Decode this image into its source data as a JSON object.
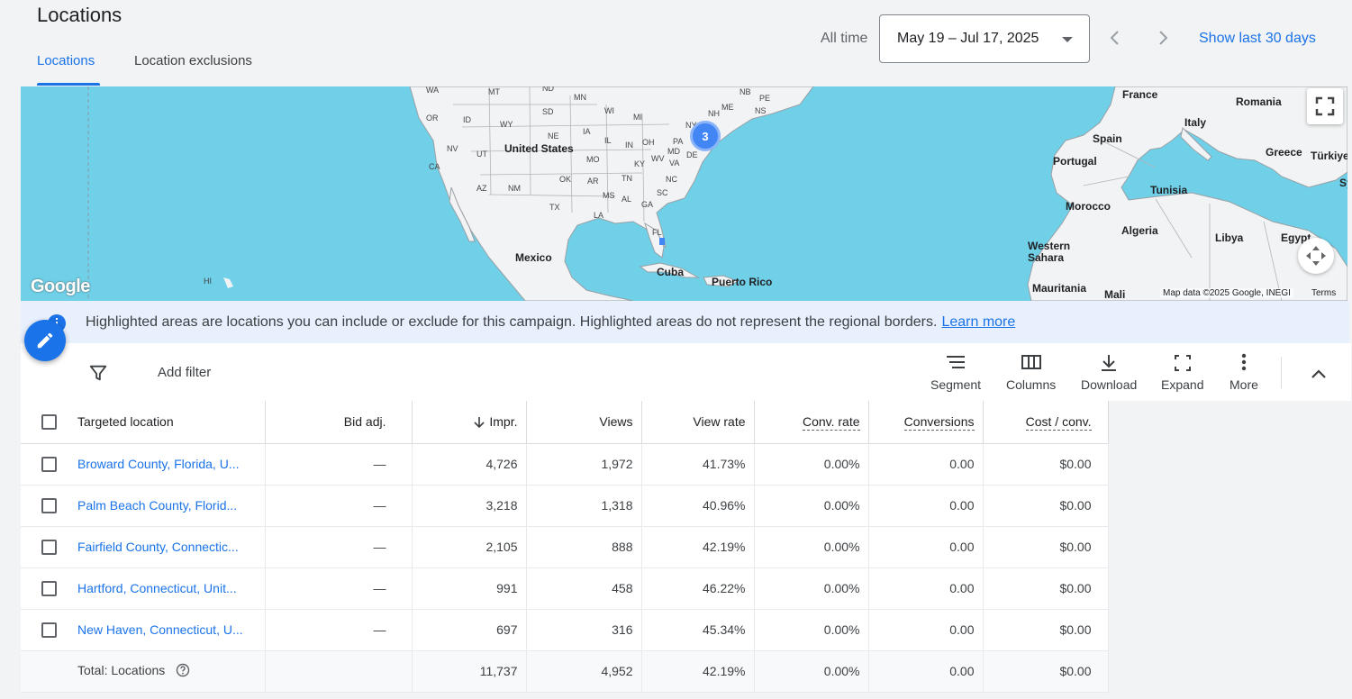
{
  "header": {
    "title": "Locations",
    "tabs": [
      {
        "label": "Locations",
        "active": true
      },
      {
        "label": "Location exclusions",
        "active": false
      }
    ],
    "date_range_label": "All time",
    "date_range_value": "May 19 – Jul 17, 2025",
    "show_last": "Show last 30 days"
  },
  "map": {
    "cluster_count": "3",
    "attribution": "Map data ©2025 Google, INEGI",
    "terms": "Terms",
    "logo": "Google",
    "country_labels": [
      "United States",
      "Mexico",
      "Cuba",
      "Puerto Rico",
      "France",
      "Romania",
      "Italy",
      "Spain",
      "Portugal",
      "Greece",
      "Türkiye",
      "Sy",
      "Tunisia",
      "Morocco",
      "Algeria",
      "Libya",
      "Egypt",
      "Western Sahara",
      "Mauritania",
      "Mali"
    ],
    "state_labels": [
      "WA",
      "MT",
      "ND",
      "MN",
      "OR",
      "ID",
      "SD",
      "WY",
      "WI",
      "MI",
      "NE",
      "IA",
      "NV",
      "UT",
      "IL",
      "IN",
      "OH",
      "PA",
      "NY",
      "CA",
      "MO",
      "KY",
      "WV",
      "VA",
      "DE",
      "MD",
      "AZ",
      "NM",
      "OK",
      "AR",
      "TN",
      "NC",
      "SC",
      "MS",
      "AL",
      "GA",
      "TX",
      "LA",
      "FL",
      "NH",
      "ME",
      "NB",
      "PE",
      "NS",
      "HI"
    ]
  },
  "info_bar": {
    "text": "Highlighted areas are locations you can include or exclude for this campaign. Highlighted areas do not represent the regional borders.",
    "learn_more": "Learn more"
  },
  "toolbar": {
    "add_filter": "Add filter",
    "segment": "Segment",
    "columns": "Columns",
    "download": "Download",
    "expand": "Expand",
    "more": "More"
  },
  "table": {
    "headers": {
      "location": "Targeted location",
      "bid_adj": "Bid adj.",
      "impr": "Impr.",
      "views": "Views",
      "view_rate": "View rate",
      "conv_rate": "Conv. rate",
      "conversions": "Conversions",
      "cost_conv": "Cost / conv."
    },
    "rows": [
      {
        "location": "Broward County, Florida, U...",
        "bid_adj": "—",
        "impr": "4,726",
        "views": "1,972",
        "view_rate": "41.73%",
        "conv_rate": "0.00%",
        "conversions": "0.00",
        "cost_conv": "$0.00"
      },
      {
        "location": "Palm Beach County, Florid...",
        "bid_adj": "—",
        "impr": "3,218",
        "views": "1,318",
        "view_rate": "40.96%",
        "conv_rate": "0.00%",
        "conversions": "0.00",
        "cost_conv": "$0.00"
      },
      {
        "location": "Fairfield County, Connectic...",
        "bid_adj": "—",
        "impr": "2,105",
        "views": "888",
        "view_rate": "42.19%",
        "conv_rate": "0.00%",
        "conversions": "0.00",
        "cost_conv": "$0.00"
      },
      {
        "location": "Hartford, Connecticut, Unit...",
        "bid_adj": "—",
        "impr": "991",
        "views": "458",
        "view_rate": "46.22%",
        "conv_rate": "0.00%",
        "conversions": "0.00",
        "cost_conv": "$0.00"
      },
      {
        "location": "New Haven, Connecticut, U...",
        "bid_adj": "—",
        "impr": "697",
        "views": "316",
        "view_rate": "45.34%",
        "conv_rate": "0.00%",
        "conversions": "0.00",
        "cost_conv": "$0.00"
      }
    ],
    "total": {
      "label": "Total: Locations",
      "impr": "11,737",
      "views": "4,952",
      "view_rate": "42.19%",
      "conv_rate": "0.00%",
      "conversions": "0.00",
      "cost_conv": "$0.00"
    }
  }
}
